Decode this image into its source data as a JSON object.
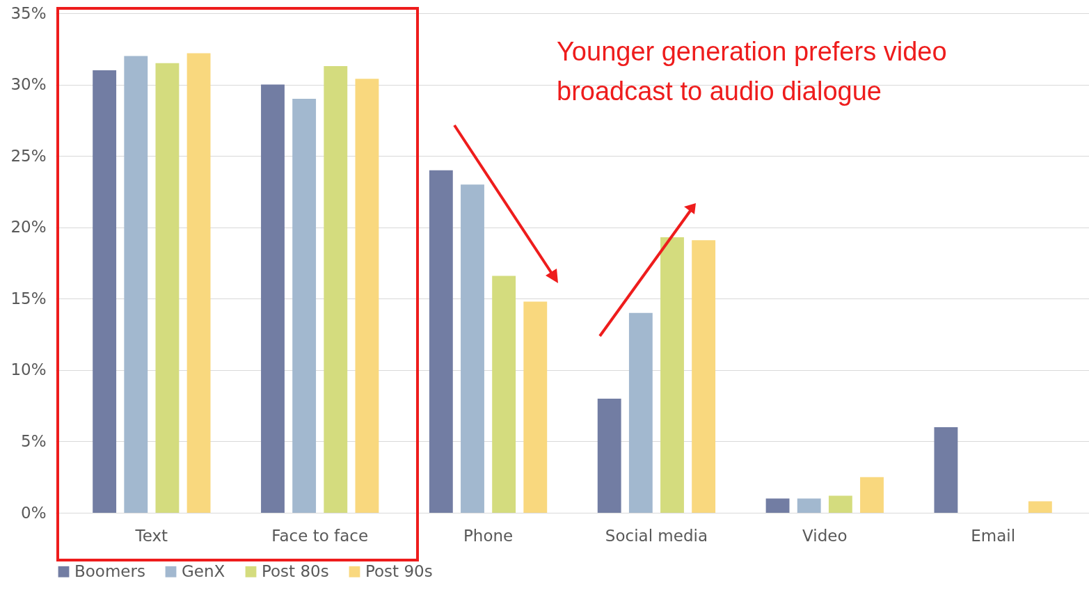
{
  "chart_data": {
    "type": "bar",
    "categories": [
      "Text",
      "Face to face",
      "Phone",
      "Social media",
      "Video",
      "Email"
    ],
    "series": [
      {
        "name": "Boomers",
        "color": "#727da3",
        "values": [
          31,
          30,
          24,
          8,
          1,
          6
        ]
      },
      {
        "name": "GenX",
        "color": "#a2b8cf",
        "values": [
          32,
          29,
          23,
          14,
          1,
          null
        ]
      },
      {
        "name": "Post 80s",
        "color": "#d4dc7e",
        "values": [
          31.5,
          31.3,
          16.6,
          19.3,
          1.2,
          null
        ]
      },
      {
        "name": "Post 90s",
        "color": "#f9d87e",
        "values": [
          32.2,
          30.4,
          14.8,
          19.1,
          2.5,
          0.8
        ]
      }
    ],
    "ylim": [
      0,
      35
    ],
    "yticks": [
      {
        "value": 0,
        "label": "0%"
      },
      {
        "value": 5,
        "label": "5%"
      },
      {
        "value": 10,
        "label": "10%"
      },
      {
        "value": 15,
        "label": "15%"
      },
      {
        "value": 20,
        "label": "20%"
      },
      {
        "value": 25,
        "label": "25%"
      },
      {
        "value": 30,
        "label": "30%"
      },
      {
        "value": 35,
        "label": "35%"
      }
    ],
    "grid": "y",
    "legend": "bottom",
    "annotations": [
      "Younger generation prefers video broadcast to audio dialogue"
    ]
  }
}
